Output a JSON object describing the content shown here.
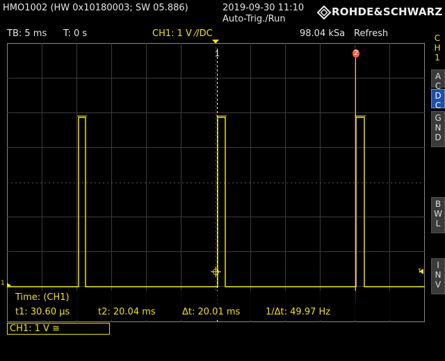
{
  "device": {
    "model": "HMO1002 (HW 0x10180003; SW 05.886)",
    "datetime": "2019-09-30 11:10",
    "trigger_status": "Auto-Trig./Run",
    "brand": "ROHDE&SCHWARZ"
  },
  "header": {
    "timebase": "TB: 5 ms",
    "trigger_time": "T: 0 s",
    "ch1_setting": "CH1: 1 V ⁄/DC",
    "sample_rate": "98.04 kSa",
    "acquire_mode": "Refresh"
  },
  "sidebar": {
    "channel_label": [
      "C",
      "H",
      "1"
    ],
    "buttons": [
      {
        "label": [
          "A",
          "C"
        ],
        "active": false
      },
      {
        "label": [
          "D",
          "C"
        ],
        "active": true
      },
      {
        "label": [
          "G",
          "N",
          "D"
        ],
        "active": false
      },
      {
        "label": [
          "B",
          "W",
          "L"
        ],
        "active": false
      },
      {
        "label": [
          "I",
          "N",
          "V"
        ],
        "active": false
      }
    ]
  },
  "markers": {
    "cursor1": "1",
    "cursor2": "2",
    "channel_ground": "1",
    "trigger_level": "T"
  },
  "measurement": {
    "title": "Time: (CH1)",
    "t1": "t1: 30.60 µs",
    "t2": "t2: 20.04 ms",
    "dt": "Δt: 20.01 ms",
    "inv_dt": "1/Δt: 49.97 Hz"
  },
  "footer": {
    "ch1_box": "CH1: 1 V ≅"
  },
  "colors": {
    "trace": "#f0e020",
    "cursor2": "#ff5a3a",
    "active_button": "#1f4fa8"
  }
}
